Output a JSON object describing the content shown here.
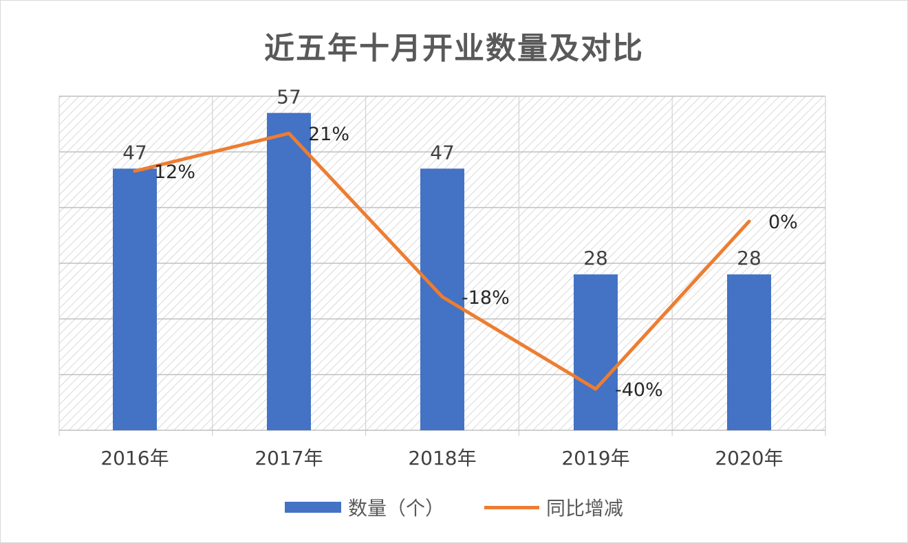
{
  "chart_data": {
    "type": "bar",
    "title": "近五年十月开业数量及对比",
    "categories": [
      "2016年",
      "2017年",
      "2018年",
      "2019年",
      "2020年"
    ],
    "series": [
      {
        "name": "数量（个）",
        "kind": "bar",
        "color": "#4472c4",
        "values": [
          47,
          57,
          47,
          28,
          28
        ],
        "labels": [
          "47",
          "57",
          "47",
          "28",
          "28"
        ]
      },
      {
        "name": "同比增减",
        "kind": "line",
        "color": "#ed7d31",
        "values": [
          0.12,
          0.21,
          -0.18,
          -0.4,
          0.0
        ],
        "labels": [
          "12%",
          "21%",
          "-18%",
          "-40%",
          "0%"
        ]
      }
    ],
    "grid": true,
    "legend": "bottom"
  }
}
